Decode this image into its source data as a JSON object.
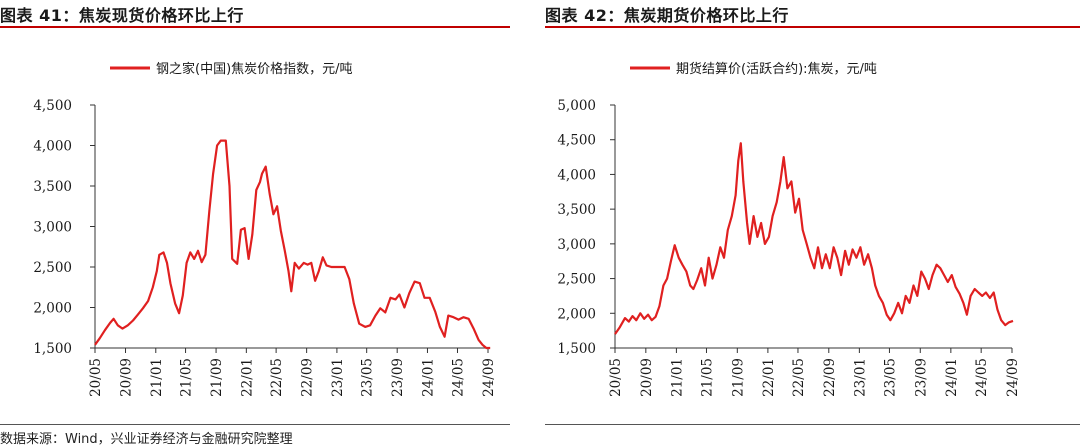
{
  "source": "数据来源：Wind，兴业证券经济与金融研究院整理",
  "chart_data": [
    {
      "type": "line",
      "title": "图表 41：焦炭现货价格环比上行",
      "series": [
        {
          "name": "钢之家(中国)焦炭价格指数，元/吨",
          "color": "#e02020",
          "points": [
            [
              "2020-05-01",
              1540
            ],
            [
              "2020-05-20",
              1620
            ],
            [
              "2020-06-10",
              1720
            ],
            [
              "2020-07-01",
              1810
            ],
            [
              "2020-07-15",
              1860
            ],
            [
              "2020-08-01",
              1780
            ],
            [
              "2020-08-20",
              1740
            ],
            [
              "2020-09-10",
              1780
            ],
            [
              "2020-10-01",
              1840
            ],
            [
              "2020-10-20",
              1910
            ],
            [
              "2020-11-10",
              1990
            ],
            [
              "2020-12-01",
              2080
            ],
            [
              "2020-12-20",
              2250
            ],
            [
              "2021-01-05",
              2450
            ],
            [
              "2021-01-15",
              2650
            ],
            [
              "2021-02-01",
              2680
            ],
            [
              "2021-02-15",
              2550
            ],
            [
              "2021-03-01",
              2300
            ],
            [
              "2021-03-20",
              2050
            ],
            [
              "2021-04-05",
              1930
            ],
            [
              "2021-04-20",
              2150
            ],
            [
              "2021-05-05",
              2550
            ],
            [
              "2021-05-20",
              2680
            ],
            [
              "2021-06-05",
              2600
            ],
            [
              "2021-06-20",
              2700
            ],
            [
              "2021-07-05",
              2560
            ],
            [
              "2021-07-20",
              2650
            ],
            [
              "2021-08-05",
              3200
            ],
            [
              "2021-08-20",
              3650
            ],
            [
              "2021-09-05",
              4000
            ],
            [
              "2021-09-20",
              4060
            ],
            [
              "2021-10-10",
              4060
            ],
            [
              "2021-10-25",
              3500
            ],
            [
              "2021-11-05",
              2600
            ],
            [
              "2021-11-25",
              2540
            ],
            [
              "2021-12-10",
              2960
            ],
            [
              "2021-12-25",
              2980
            ],
            [
              "2022-01-10",
              2600
            ],
            [
              "2022-01-25",
              2900
            ],
            [
              "2022-02-10",
              3450
            ],
            [
              "2022-02-25",
              3550
            ],
            [
              "2022-03-05",
              3650
            ],
            [
              "2022-03-20",
              3740
            ],
            [
              "2022-04-05",
              3400
            ],
            [
              "2022-04-20",
              3150
            ],
            [
              "2022-05-05",
              3250
            ],
            [
              "2022-05-20",
              2950
            ],
            [
              "2022-06-05",
              2700
            ],
            [
              "2022-06-20",
              2450
            ],
            [
              "2022-07-01",
              2200
            ],
            [
              "2022-07-15",
              2550
            ],
            [
              "2022-08-01",
              2480
            ],
            [
              "2022-08-20",
              2550
            ],
            [
              "2022-09-05",
              2530
            ],
            [
              "2022-09-20",
              2550
            ],
            [
              "2022-10-05",
              2330
            ],
            [
              "2022-10-20",
              2450
            ],
            [
              "2022-11-05",
              2620
            ],
            [
              "2022-11-20",
              2520
            ],
            [
              "2022-12-10",
              2500
            ],
            [
              "2023-01-10",
              2500
            ],
            [
              "2023-02-01",
              2500
            ],
            [
              "2023-02-20",
              2350
            ],
            [
              "2023-03-10",
              2050
            ],
            [
              "2023-04-01",
              1800
            ],
            [
              "2023-04-25",
              1760
            ],
            [
              "2023-05-15",
              1780
            ],
            [
              "2023-06-05",
              1900
            ],
            [
              "2023-06-25",
              1990
            ],
            [
              "2023-07-15",
              1940
            ],
            [
              "2023-08-05",
              2120
            ],
            [
              "2023-08-25",
              2100
            ],
            [
              "2023-09-10",
              2160
            ],
            [
              "2023-09-30",
              2000
            ],
            [
              "2023-10-20",
              2180
            ],
            [
              "2023-11-10",
              2320
            ],
            [
              "2023-12-01",
              2300
            ],
            [
              "2023-12-20",
              2120
            ],
            [
              "2024-01-10",
              2120
            ],
            [
              "2024-02-01",
              1950
            ],
            [
              "2024-02-20",
              1760
            ],
            [
              "2024-03-10",
              1640
            ],
            [
              "2024-03-25",
              1900
            ],
            [
              "2024-04-15",
              1880
            ],
            [
              "2024-05-05",
              1850
            ],
            [
              "2024-05-25",
              1880
            ],
            [
              "2024-06-15",
              1860
            ],
            [
              "2024-07-05",
              1740
            ],
            [
              "2024-07-25",
              1600
            ],
            [
              "2024-08-10",
              1540
            ],
            [
              "2024-08-25",
              1500
            ],
            [
              "2024-09-10",
              1500
            ]
          ]
        }
      ],
      "y_axis": {
        "min": 1500,
        "max": 4500,
        "step": 500,
        "tick_labels": [
          "1,500",
          "2,000",
          "2,500",
          "3,000",
          "3,500",
          "4,000",
          "4,500"
        ]
      },
      "x_axis": {
        "min": "2020-05-01",
        "max": "2024-09-01",
        "ticks": [
          "2020-05-01",
          "2020-09-01",
          "2021-01-01",
          "2021-05-01",
          "2021-09-01",
          "2022-01-01",
          "2022-05-01",
          "2022-09-01",
          "2023-01-01",
          "2023-05-01",
          "2023-09-01",
          "2024-01-01",
          "2024-05-01",
          "2024-09-01"
        ],
        "tick_labels": [
          "20/05",
          "20/09",
          "21/01",
          "21/05",
          "21/09",
          "22/01",
          "22/05",
          "22/09",
          "23/01",
          "23/05",
          "23/09",
          "24/01",
          "24/05",
          "24/09"
        ]
      },
      "grid": false,
      "legend_position": "top"
    },
    {
      "type": "line",
      "title": "图表 42：焦炭期货价格环比上行",
      "series": [
        {
          "name": "期货结算价(活跃合约):焦炭，元/吨",
          "color": "#e02020",
          "points": [
            [
              "2020-05-01",
              1700
            ],
            [
              "2020-05-20",
              1800
            ],
            [
              "2020-06-10",
              1930
            ],
            [
              "2020-06-25",
              1880
            ],
            [
              "2020-07-10",
              1960
            ],
            [
              "2020-07-25",
              1900
            ],
            [
              "2020-08-10",
              2000
            ],
            [
              "2020-08-25",
              1920
            ],
            [
              "2020-09-10",
              1980
            ],
            [
              "2020-09-25",
              1900
            ],
            [
              "2020-10-10",
              1950
            ],
            [
              "2020-10-25",
              2100
            ],
            [
              "2020-11-10",
              2400
            ],
            [
              "2020-11-25",
              2500
            ],
            [
              "2020-12-10",
              2750
            ],
            [
              "2020-12-25",
              2980
            ],
            [
              "2021-01-10",
              2800
            ],
            [
              "2021-01-25",
              2700
            ],
            [
              "2021-02-10",
              2600
            ],
            [
              "2021-02-25",
              2400
            ],
            [
              "2021-03-10",
              2350
            ],
            [
              "2021-03-25",
              2480
            ],
            [
              "2021-04-10",
              2650
            ],
            [
              "2021-04-25",
              2400
            ],
            [
              "2021-05-10",
              2800
            ],
            [
              "2021-05-25",
              2500
            ],
            [
              "2021-06-10",
              2700
            ],
            [
              "2021-06-25",
              2950
            ],
            [
              "2021-07-10",
              2800
            ],
            [
              "2021-07-25",
              3200
            ],
            [
              "2021-08-10",
              3400
            ],
            [
              "2021-08-25",
              3700
            ],
            [
              "2021-09-05",
              4200
            ],
            [
              "2021-09-15",
              4450
            ],
            [
              "2021-09-25",
              3900
            ],
            [
              "2021-10-10",
              3300
            ],
            [
              "2021-10-20",
              3000
            ],
            [
              "2021-11-05",
              3400
            ],
            [
              "2021-11-20",
              3100
            ],
            [
              "2021-12-05",
              3300
            ],
            [
              "2021-12-20",
              3000
            ],
            [
              "2022-01-05",
              3100
            ],
            [
              "2022-01-20",
              3400
            ],
            [
              "2022-02-05",
              3600
            ],
            [
              "2022-02-20",
              3900
            ],
            [
              "2022-03-05",
              4250
            ],
            [
              "2022-03-20",
              3800
            ],
            [
              "2022-04-05",
              3900
            ],
            [
              "2022-04-20",
              3450
            ],
            [
              "2022-05-05",
              3650
            ],
            [
              "2022-05-20",
              3200
            ],
            [
              "2022-06-05",
              3000
            ],
            [
              "2022-06-20",
              2800
            ],
            [
              "2022-07-05",
              2650
            ],
            [
              "2022-07-20",
              2950
            ],
            [
              "2022-08-05",
              2650
            ],
            [
              "2022-08-20",
              2850
            ],
            [
              "2022-09-05",
              2650
            ],
            [
              "2022-09-20",
              2950
            ],
            [
              "2022-10-05",
              2800
            ],
            [
              "2022-10-20",
              2550
            ],
            [
              "2022-11-05",
              2900
            ],
            [
              "2022-11-20",
              2700
            ],
            [
              "2022-12-05",
              2920
            ],
            [
              "2022-12-20",
              2800
            ],
            [
              "2023-01-05",
              2950
            ],
            [
              "2023-01-20",
              2700
            ],
            [
              "2023-02-05",
              2850
            ],
            [
              "2023-02-20",
              2650
            ],
            [
              "2023-03-05",
              2400
            ],
            [
              "2023-03-20",
              2250
            ],
            [
              "2023-04-05",
              2150
            ],
            [
              "2023-04-20",
              1980
            ],
            [
              "2023-05-05",
              1900
            ],
            [
              "2023-05-20",
              2000
            ],
            [
              "2023-06-05",
              2150
            ],
            [
              "2023-06-20",
              2000
            ],
            [
              "2023-07-05",
              2250
            ],
            [
              "2023-07-20",
              2150
            ],
            [
              "2023-08-05",
              2400
            ],
            [
              "2023-08-20",
              2250
            ],
            [
              "2023-09-05",
              2600
            ],
            [
              "2023-09-20",
              2500
            ],
            [
              "2023-10-05",
              2350
            ],
            [
              "2023-10-20",
              2550
            ],
            [
              "2023-11-05",
              2700
            ],
            [
              "2023-11-20",
              2650
            ],
            [
              "2023-12-05",
              2550
            ],
            [
              "2023-12-20",
              2450
            ],
            [
              "2024-01-05",
              2550
            ],
            [
              "2024-01-20",
              2380
            ],
            [
              "2024-02-05",
              2280
            ],
            [
              "2024-02-20",
              2150
            ],
            [
              "2024-03-05",
              1980
            ],
            [
              "2024-03-20",
              2250
            ],
            [
              "2024-04-05",
              2350
            ],
            [
              "2024-04-20",
              2300
            ],
            [
              "2024-05-05",
              2250
            ],
            [
              "2024-05-20",
              2300
            ],
            [
              "2024-06-05",
              2220
            ],
            [
              "2024-06-20",
              2300
            ],
            [
              "2024-07-05",
              2050
            ],
            [
              "2024-07-20",
              1900
            ],
            [
              "2024-08-05",
              1830
            ],
            [
              "2024-08-20",
              1870
            ],
            [
              "2024-09-05",
              1890
            ]
          ]
        }
      ],
      "y_axis": {
        "min": 1500,
        "max": 5000,
        "step": 500,
        "tick_labels": [
          "1,500",
          "2,000",
          "2,500",
          "3,000",
          "3,500",
          "4,000",
          "4,500",
          "5,000"
        ]
      },
      "x_axis": {
        "min": "2020-05-01",
        "max": "2024-09-01",
        "ticks": [
          "2020-05-01",
          "2020-09-01",
          "2021-01-01",
          "2021-05-01",
          "2021-09-01",
          "2022-01-01",
          "2022-05-01",
          "2022-09-01",
          "2023-01-01",
          "2023-05-01",
          "2023-09-01",
          "2024-01-01",
          "2024-05-01",
          "2024-09-01"
        ],
        "tick_labels": [
          "20/05",
          "20/09",
          "21/01",
          "21/05",
          "21/09",
          "22/01",
          "22/05",
          "22/09",
          "23/01",
          "23/05",
          "23/09",
          "24/01",
          "24/05",
          "24/09"
        ]
      },
      "grid": false,
      "legend_position": "top"
    }
  ]
}
